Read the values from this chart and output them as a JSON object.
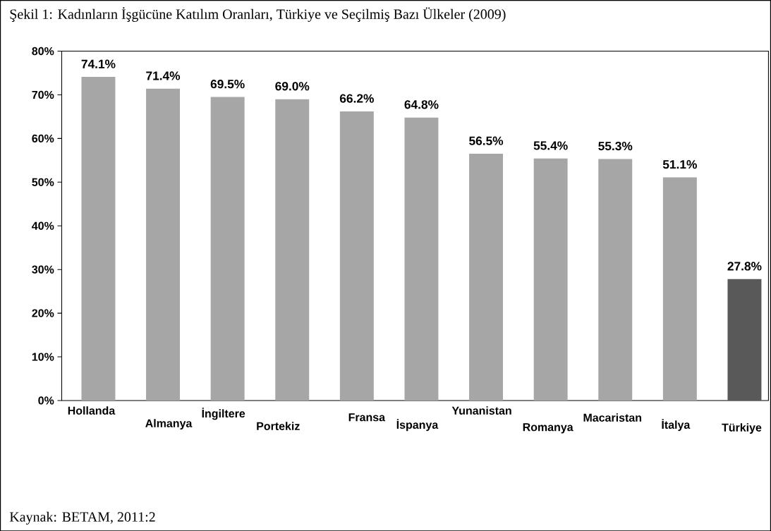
{
  "chart_data": {
    "type": "bar",
    "title": "Şekil 1: Kadınların İşgücüne Katılım Oranları, Türkiye ve Seçilmiş Bazı Ülkeler (2009)",
    "categories": [
      "Hollanda",
      "Almanya",
      "İngiltere",
      "Portekiz",
      "Fransa",
      "İspanya",
      "Yunanistan",
      "Romanya",
      "Macaristan",
      "İtalya",
      "Türkiye"
    ],
    "values": [
      74.1,
      71.4,
      69.5,
      69.0,
      66.2,
      64.8,
      56.5,
      55.4,
      55.3,
      51.1,
      27.8
    ],
    "value_labels": [
      "74.1%",
      "71.4%",
      "69.5%",
      "69.0%",
      "66.2%",
      "64.8%",
      "56.5%",
      "55.4%",
      "55.3%",
      "51.1%",
      "27.8%"
    ],
    "colors": [
      "#a6a6a6",
      "#a6a6a6",
      "#a6a6a6",
      "#a6a6a6",
      "#a6a6a6",
      "#a6a6a6",
      "#a6a6a6",
      "#a6a6a6",
      "#a6a6a6",
      "#a6a6a6",
      "#595959"
    ],
    "ylim": [
      0,
      80
    ],
    "yticks": [
      {
        "value": 0,
        "label": "0%"
      },
      {
        "value": 10,
        "label": "10%"
      },
      {
        "value": 20,
        "label": "20%"
      },
      {
        "value": 30,
        "label": "30%"
      },
      {
        "value": 40,
        "label": "40%"
      },
      {
        "value": 50,
        "label": "50%"
      },
      {
        "value": 60,
        "label": "60%"
      },
      {
        "value": 70,
        "label": "70%"
      },
      {
        "value": 80,
        "label": "80%"
      }
    ],
    "grid": false,
    "annotations": [
      "Kaynak: BETAM, 2011:2"
    ]
  }
}
